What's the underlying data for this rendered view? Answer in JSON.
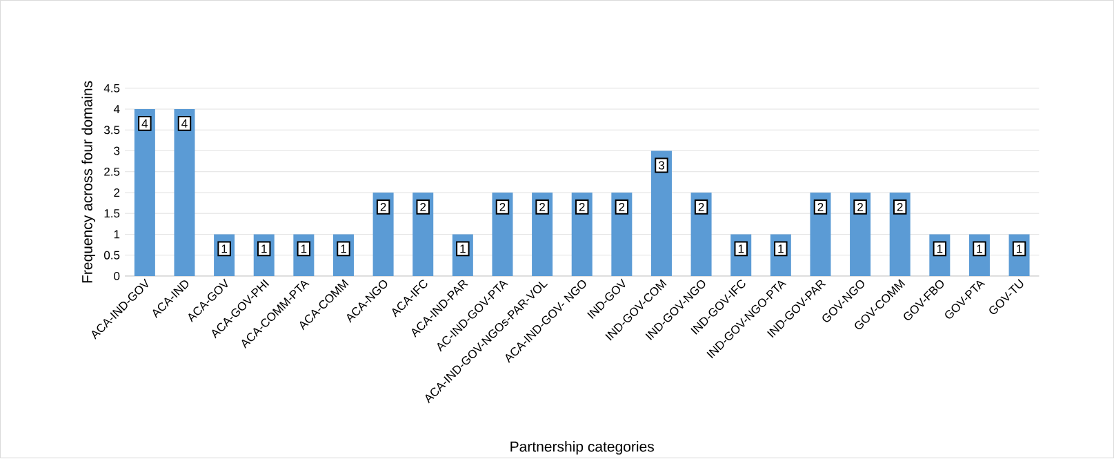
{
  "chart_data": {
    "type": "bar",
    "xlabel": "Partnership categories",
    "ylabel": "Frequency across four domains",
    "categories": [
      "ACA-IND-GOV",
      "ACA-IND",
      "ACA-GOV",
      "ACA-GOV-PHI",
      "ACA-COMM-PTA",
      "ACA-COMM",
      "ACA-NGO",
      "ACA-IFC",
      "ACA-IND-PAR",
      "AC-IND-GOV-PTA",
      "ACA-IND-GOV-NGOs-PAR-VOL",
      "ACA-IND-GOV- NGO",
      "IND-GOV",
      "IND-GOV-COM",
      "IND-GOV-NGO",
      "IND-GOV-IFC",
      "IND-GOV-NGO-PTA",
      "IND-GOV-PAR",
      "GOV-NGO",
      "GOV-COMM",
      "GOV-FBO",
      "GOV-PTA",
      "GOV-TU"
    ],
    "values": [
      4,
      4,
      1,
      1,
      1,
      1,
      2,
      2,
      1,
      2,
      2,
      2,
      2,
      3,
      2,
      1,
      1,
      2,
      2,
      2,
      1,
      1,
      1
    ],
    "color": "#5b9bd5",
    "ylim": [
      0,
      4.5
    ],
    "yticks": [
      0,
      0.5,
      1,
      1.5,
      2,
      2.5,
      3,
      3.5,
      4,
      4.5
    ],
    "grid": "y",
    "data_labels": true
  }
}
